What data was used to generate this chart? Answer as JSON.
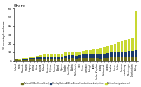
{
  "title": "Share",
  "ylabel": "% country land area",
  "countries": [
    "Iceland",
    "Malta",
    "Denmark",
    "Ireland",
    "Hungary",
    "Estonia",
    "Latvia",
    "Bulgaria",
    "Finland",
    "Lithuania",
    "Belgium",
    "Romania",
    "Poland",
    "Cyprus",
    "Sweden",
    "Czech Rep.",
    "Austria",
    "Netherlands",
    "Italy",
    "France",
    "Germany",
    "Portugal",
    "Spain",
    "United Kingdom",
    "Norway",
    "Switzerland",
    "Croatia",
    "Slovakia",
    "Greece",
    "Serbia",
    "Slovenia",
    "Luxembourg",
    "Montenegro",
    "Liechtenstein",
    "Turkey"
  ],
  "natura_only": [
    1.5,
    0.5,
    0.8,
    1.2,
    1.5,
    2.0,
    2.5,
    2.5,
    2.8,
    2.8,
    1.5,
    2.5,
    2.0,
    2.0,
    3.0,
    2.8,
    3.0,
    2.5,
    3.0,
    3.0,
    3.0,
    3.5,
    3.5,
    3.0,
    2.5,
    3.5,
    3.5,
    4.0,
    4.5,
    4.0,
    4.5,
    4.0,
    4.5,
    4.0,
    5.0
  ],
  "overlap": [
    0.5,
    0.5,
    0.8,
    1.0,
    1.5,
    1.5,
    1.8,
    2.0,
    2.0,
    2.5,
    2.5,
    2.5,
    3.0,
    2.5,
    3.0,
    3.5,
    3.5,
    3.0,
    3.5,
    4.0,
    4.0,
    4.5,
    5.0,
    4.5,
    5.0,
    5.0,
    5.5,
    5.5,
    5.5,
    6.0,
    6.0,
    6.5,
    7.0,
    7.5,
    8.0
  ],
  "national_only": [
    0.5,
    1.0,
    1.5,
    1.5,
    2.0,
    1.5,
    1.5,
    2.0,
    2.5,
    2.0,
    3.0,
    2.5,
    3.0,
    3.0,
    3.5,
    3.5,
    4.0,
    4.0,
    4.5,
    4.5,
    5.0,
    5.0,
    5.5,
    6.0,
    7.0,
    7.5,
    8.0,
    9.0,
    10.0,
    11.0,
    12.0,
    13.0,
    14.0,
    15.0,
    45.0
  ],
  "color_natura": "#6b6b1a",
  "color_overlap": "#1a3a6b",
  "color_national": "#c8d832",
  "legend_labels": [
    "Natura 2000 or Emerald only",
    "Overlap Natura 2000 or Emerald and national designations",
    "National designations only"
  ],
  "ylim": [
    0,
    60
  ],
  "yticks": [
    0,
    10,
    20,
    30,
    40,
    50,
    60
  ]
}
